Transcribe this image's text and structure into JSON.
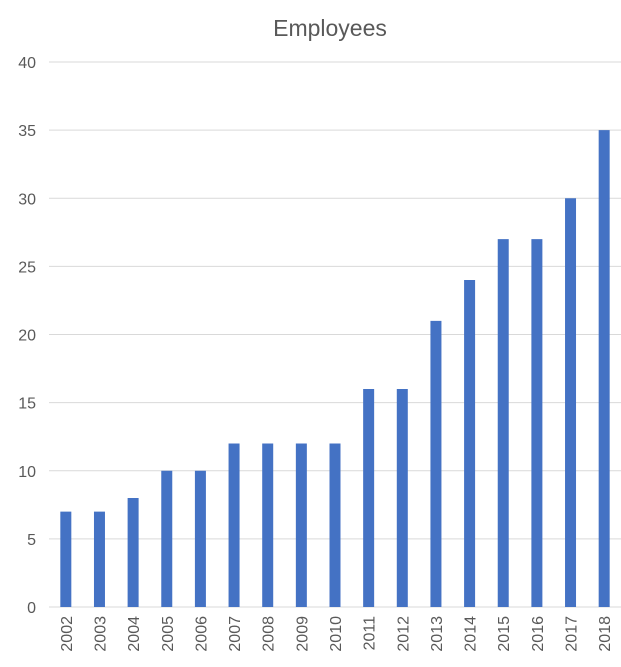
{
  "chart_data": {
    "type": "bar",
    "title": "Employees",
    "xlabel": "",
    "ylabel": "",
    "categories": [
      "2002",
      "2003",
      "2004",
      "2005",
      "2006",
      "2007",
      "2008",
      "2009",
      "2010",
      "2011",
      "2012",
      "2013",
      "2014",
      "2015",
      "2016",
      "2017",
      "2018"
    ],
    "values": [
      7,
      7,
      8,
      10,
      10,
      12,
      12,
      12,
      12,
      16,
      16,
      21,
      24,
      27,
      27,
      30,
      35
    ],
    "ylim": [
      0,
      40
    ],
    "yticks": [
      0,
      5,
      10,
      15,
      20,
      25,
      30,
      35,
      40
    ],
    "grid": true,
    "legend": "none",
    "colors": {
      "bar": "#4472C4",
      "grid": "#D9D9D9",
      "text": "#595959"
    }
  }
}
